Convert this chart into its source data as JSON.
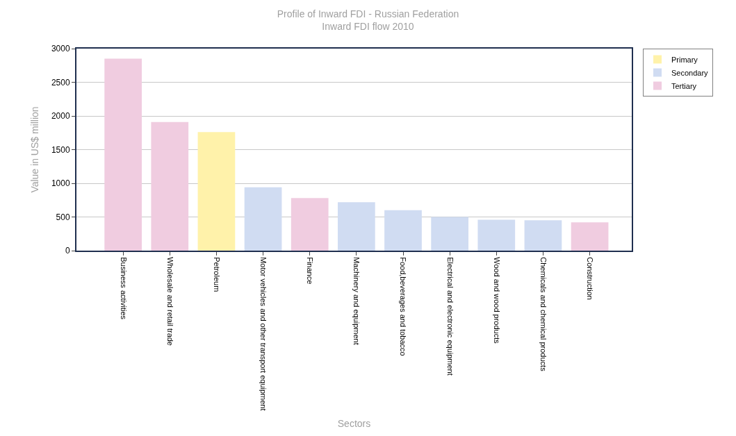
{
  "chart_data": {
    "type": "bar",
    "title": "Profile of Inward FDI - Russian Federation",
    "subtitle": "Inward FDI flow 2010",
    "xlabel": "Sectors",
    "ylabel": "Value in US$ million",
    "categories": [
      "Business activities",
      "Wholesale and retail trade",
      "Petroleum",
      "Motor vehicles and other transport equipment",
      "Finance",
      "Machinery and equipment",
      "Food,beverages and tobacco",
      "Electrical and electronic equipment",
      "Wood and wood products",
      "Chemicals and chemical products",
      "Construction"
    ],
    "series": [
      {
        "name": "Primary",
        "color": "#fff2aa",
        "values": [
          null,
          null,
          1760,
          null,
          null,
          null,
          null,
          null,
          null,
          null,
          null
        ]
      },
      {
        "name": "Secondary",
        "color": "#d0dcf2",
        "values": [
          null,
          null,
          null,
          940,
          null,
          720,
          600,
          500,
          460,
          450,
          null
        ]
      },
      {
        "name": "Tertiary",
        "color": "#f0cce0",
        "values": [
          2850,
          1910,
          null,
          null,
          780,
          null,
          null,
          null,
          null,
          null,
          420
        ]
      }
    ],
    "ylim": [
      0,
      3000
    ],
    "yticks": [
      0,
      500,
      1000,
      1500,
      2000,
      2500,
      3000
    ],
    "grid": "y",
    "legend": "top right"
  }
}
